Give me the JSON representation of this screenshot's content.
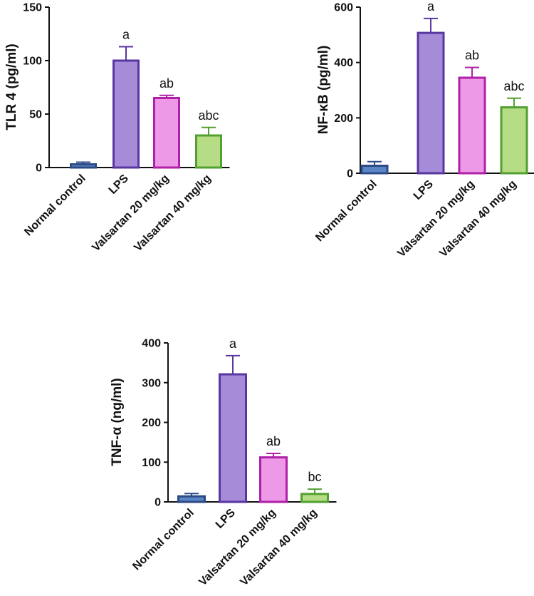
{
  "chart_data": [
    {
      "type": "bar",
      "ylabel": "TLR 4 (pg/ml)",
      "ylim": [
        0,
        150
      ],
      "yticks": [
        0,
        50,
        100,
        150
      ],
      "categories": [
        "Normal control",
        "LPS",
        "Valsartan 20 mg/kg",
        "Valsartan 40 mg/kg"
      ],
      "values": [
        3,
        100,
        65,
        30
      ],
      "errors": [
        2,
        13,
        2.5,
        7.5
      ],
      "sig_labels": [
        "",
        "a",
        "ab",
        "abc"
      ]
    },
    {
      "type": "bar",
      "ylabel": "NF-κB  (pg/ml)",
      "ylim": [
        0,
        600
      ],
      "yticks": [
        0,
        200,
        400,
        600
      ],
      "categories": [
        "Normal control",
        "LPS",
        "Valsartan 20 mg/kg",
        "Valsartan 40 mg/kg"
      ],
      "values": [
        27,
        507,
        345,
        238
      ],
      "errors": [
        15,
        52,
        37,
        33
      ],
      "sig_labels": [
        "",
        "a",
        "ab",
        "abc"
      ]
    },
    {
      "type": "bar",
      "ylabel": "TNF-α (ng/ml)",
      "ylim": [
        0,
        400
      ],
      "yticks": [
        0,
        100,
        200,
        300,
        400
      ],
      "categories": [
        "Normal control",
        "LPS",
        "Valsartan 20 mg/kg",
        "Valsartan 40 mg/kg"
      ],
      "values": [
        14,
        321,
        112,
        20
      ],
      "errors": [
        7,
        47,
        10,
        12
      ],
      "sig_labels": [
        "",
        "a",
        "ab",
        "bc"
      ]
    }
  ],
  "colors": {
    "fills": [
      "#5b86c5",
      "#a58bd8",
      "#ee98e8",
      "#b6dc86"
    ],
    "strokes": [
      "#2c4a86",
      "#5a36a0",
      "#b020a8",
      "#52a030"
    ],
    "axis": "#111111"
  }
}
